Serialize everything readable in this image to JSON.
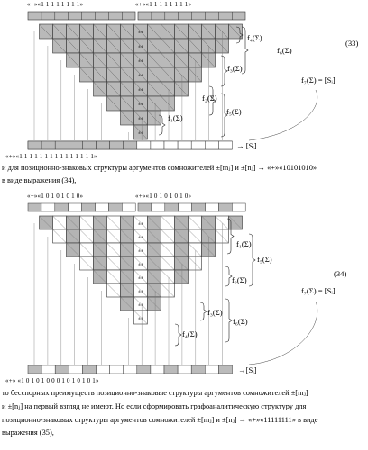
{
  "fig33": {
    "top_left_bits": "«+»«1   1   1   1   1   1   1   1»",
    "top_right_bits": "«+»«1   1   1   1   1   1   1   1»",
    "bottom_bits": "«+»«1   1   1   1   1   1   1   1   1   1   1   1   1   1   1»",
    "f4": "f₄(Σ)",
    "f6": "f₆(Σ)",
    "f3": "f₃(Σ)",
    "f2": "f₂(Σ)",
    "f5": "f₅(Σ)",
    "f1": "f₁(Σ)",
    "f7": "f₇(Σ) = [Sᵢ]",
    "result": "→ [Sᵢ]",
    "eq_number": "(33)",
    "plus_sign": "±"
  },
  "text1": {
    "line1": "и для позиционно-знаковых структуры аргументов сомножителей ±[mⱼ] и ±[nⱼ] → «+»«10101010»",
    "line2": "в виде выражения (34),"
  },
  "fig34": {
    "top_left_bits": "«+»«1   0   1   0   1   0   1   0»",
    "top_right_bits": "«+»«1   0   1   0   1   0   1   0»",
    "bottom_bits": "«+» «1   0   1   0   1   0   0   0   1   0   1   0   1   0   1»",
    "f1": "f₁(Σ)",
    "f5": "f₅(Σ)",
    "f2": "f₂(Σ)",
    "f3": "f₃(Σ)",
    "f6": "f₆(Σ)",
    "f4": "f₄(Σ)",
    "f7": "f₇(Σ) = [Sᵢ]",
    "result": "→[Sᵢ]",
    "eq_number": "(34)",
    "plus_sign": "±"
  },
  "text2": {
    "line1": "то бесспорных преимуществ позиционно-знаковые структуры аргументов сомножителей ±[mⱼ]",
    "line2": "и ±[nⱼ] на первый взгляд не имеют. Но если сформировать графоаналитическую структуру для",
    "line3": "позиционно-знаковых структуры аргументов сомножителей ±[mⱼ] и ±[nⱼ] → «+»«11111111» в виде",
    "line4": "выражения (35),"
  }
}
